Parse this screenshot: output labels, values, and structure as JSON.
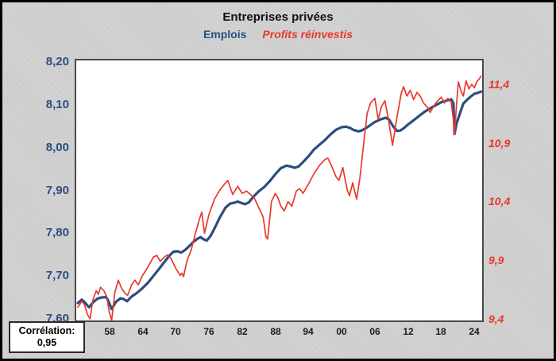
{
  "title": "Entreprises privées",
  "legend": {
    "emplois": "Emplois",
    "profits": "Profits réinvestis"
  },
  "correlation_box": {
    "label": "Corrélation:",
    "value": "0,95"
  },
  "colors": {
    "emplois_line": "#2d4d80",
    "profits_line": "#e8392c",
    "title_text": "#111111",
    "plot_bg": "#ffffff",
    "frame_bg": "#d7d7d7"
  },
  "chart_data": {
    "type": "line",
    "title": "Entreprises privées",
    "legend_position": "top-center",
    "grid": false,
    "x_domain": [
      1952.0,
      2025.4
    ],
    "left_ylim_bottom_top": [
      7.5963,
      8.2038
    ],
    "right_ylim_bottom_top": [
      9.3864,
      11.6034
    ],
    "left_ticks": [
      {
        "label": "8,20",
        "value": 8.2
      },
      {
        "label": "8,10",
        "value": 8.1
      },
      {
        "label": "8,00",
        "value": 8.0
      },
      {
        "label": "7,90",
        "value": 7.9
      },
      {
        "label": "7,80",
        "value": 7.8
      },
      {
        "label": "7,70",
        "value": 7.7
      },
      {
        "label": "7,60",
        "value": 7.6
      }
    ],
    "right_ticks": [
      {
        "label": "11,4",
        "value": 11.4
      },
      {
        "label": "10,9",
        "value": 10.9
      },
      {
        "label": "10,4",
        "value": 10.4
      },
      {
        "label": "9,9",
        "value": 9.9
      },
      {
        "label": "9,4",
        "value": 9.4
      }
    ],
    "x_ticks": [
      {
        "label": "58",
        "year": 1958
      },
      {
        "label": "64",
        "year": 1964
      },
      {
        "label": "70",
        "year": 1970
      },
      {
        "label": "76",
        "year": 1976
      },
      {
        "label": "82",
        "year": 1982
      },
      {
        "label": "88",
        "year": 1988
      },
      {
        "label": "94",
        "year": 1994
      },
      {
        "label": "00",
        "year": 2000
      },
      {
        "label": "06",
        "year": 2006
      },
      {
        "label": "12",
        "year": 2012
      },
      {
        "label": "18",
        "year": 2018
      },
      {
        "label": "24",
        "year": 2024
      }
    ],
    "series": [
      {
        "name": "Emplois",
        "axis": "left",
        "color": "#2d4d80",
        "stroke_width": 3.2,
        "points": [
          [
            1952.3,
            7.637
          ],
          [
            1953.0,
            7.645
          ],
          [
            1953.6,
            7.638
          ],
          [
            1954.3,
            7.627
          ],
          [
            1955.0,
            7.638
          ],
          [
            1955.8,
            7.647
          ],
          [
            1956.5,
            7.65
          ],
          [
            1957.4,
            7.651
          ],
          [
            1957.8,
            7.642
          ],
          [
            1958.4,
            7.623
          ],
          [
            1959.2,
            7.64
          ],
          [
            1960.0,
            7.648
          ],
          [
            1960.6,
            7.646
          ],
          [
            1961.2,
            7.641
          ],
          [
            1962.0,
            7.652
          ],
          [
            1963.0,
            7.661
          ],
          [
            1964.0,
            7.672
          ],
          [
            1965.0,
            7.685
          ],
          [
            1966.0,
            7.701
          ],
          [
            1967.0,
            7.717
          ],
          [
            1968.0,
            7.734
          ],
          [
            1969.0,
            7.75
          ],
          [
            1969.6,
            7.757
          ],
          [
            1970.3,
            7.758
          ],
          [
            1971.0,
            7.755
          ],
          [
            1971.8,
            7.762
          ],
          [
            1972.5,
            7.771
          ],
          [
            1973.2,
            7.78
          ],
          [
            1974.0,
            7.788
          ],
          [
            1974.5,
            7.791
          ],
          [
            1975.0,
            7.786
          ],
          [
            1975.6,
            7.783
          ],
          [
            1976.3,
            7.794
          ],
          [
            1977.0,
            7.811
          ],
          [
            1978.0,
            7.838
          ],
          [
            1979.0,
            7.86
          ],
          [
            1979.8,
            7.869
          ],
          [
            1980.5,
            7.871
          ],
          [
            1981.2,
            7.874
          ],
          [
            1981.8,
            7.871
          ],
          [
            1982.5,
            7.868
          ],
          [
            1983.2,
            7.872
          ],
          [
            1984.0,
            7.885
          ],
          [
            1985.0,
            7.898
          ],
          [
            1986.0,
            7.908
          ],
          [
            1987.0,
            7.922
          ],
          [
            1988.0,
            7.938
          ],
          [
            1989.0,
            7.952
          ],
          [
            1990.0,
            7.958
          ],
          [
            1990.8,
            7.956
          ],
          [
            1991.5,
            7.953
          ],
          [
            1992.2,
            7.956
          ],
          [
            1993.0,
            7.966
          ],
          [
            1994.0,
            7.98
          ],
          [
            1995.0,
            7.996
          ],
          [
            1996.0,
            8.007
          ],
          [
            1997.0,
            8.018
          ],
          [
            1998.0,
            8.031
          ],
          [
            1999.0,
            8.042
          ],
          [
            2000.0,
            8.048
          ],
          [
            2000.8,
            8.049
          ],
          [
            2001.5,
            8.046
          ],
          [
            2002.2,
            8.041
          ],
          [
            2003.0,
            8.038
          ],
          [
            2003.6,
            8.04
          ],
          [
            2004.3,
            8.045
          ],
          [
            2005.0,
            8.051
          ],
          [
            2006.0,
            8.06
          ],
          [
            2007.0,
            8.066
          ],
          [
            2008.0,
            8.07
          ],
          [
            2008.6,
            8.065
          ],
          [
            2009.3,
            8.05
          ],
          [
            2010.0,
            8.039
          ],
          [
            2010.6,
            8.04
          ],
          [
            2011.3,
            8.046
          ],
          [
            2012.0,
            8.054
          ],
          [
            2013.0,
            8.064
          ],
          [
            2014.0,
            8.074
          ],
          [
            2015.0,
            8.084
          ],
          [
            2016.0,
            8.092
          ],
          [
            2017.0,
            8.099
          ],
          [
            2018.0,
            8.106
          ],
          [
            2019.0,
            8.11
          ],
          [
            2019.8,
            8.113
          ],
          [
            2020.2,
            8.105
          ],
          [
            2020.4,
            8.032
          ],
          [
            2020.8,
            8.058
          ],
          [
            2021.3,
            8.077
          ],
          [
            2022.0,
            8.103
          ],
          [
            2022.7,
            8.112
          ],
          [
            2023.3,
            8.119
          ],
          [
            2024.0,
            8.126
          ],
          [
            2024.6,
            8.128
          ],
          [
            2025.2,
            8.131
          ]
        ]
      },
      {
        "name": "Profits réinvestis",
        "axis": "right",
        "color": "#e8392c",
        "stroke_width": 1.7,
        "points": [
          [
            1952.3,
            9.5
          ],
          [
            1953.0,
            9.55
          ],
          [
            1953.5,
            9.52
          ],
          [
            1954.0,
            9.44
          ],
          [
            1954.5,
            9.4
          ],
          [
            1955.0,
            9.56
          ],
          [
            1955.6,
            9.64
          ],
          [
            1956.0,
            9.61
          ],
          [
            1956.4,
            9.67
          ],
          [
            1957.0,
            9.64
          ],
          [
            1957.5,
            9.59
          ],
          [
            1958.0,
            9.45
          ],
          [
            1958.4,
            9.39
          ],
          [
            1959.0,
            9.63
          ],
          [
            1959.6,
            9.73
          ],
          [
            1960.2,
            9.66
          ],
          [
            1960.8,
            9.62
          ],
          [
            1961.3,
            9.6
          ],
          [
            1962.0,
            9.69
          ],
          [
            1962.6,
            9.73
          ],
          [
            1963.2,
            9.69
          ],
          [
            1964.0,
            9.77
          ],
          [
            1964.7,
            9.82
          ],
          [
            1965.4,
            9.88
          ],
          [
            1966.0,
            9.93
          ],
          [
            1966.6,
            9.94
          ],
          [
            1967.2,
            9.89
          ],
          [
            1968.0,
            9.93
          ],
          [
            1968.5,
            9.945
          ],
          [
            1969.2,
            9.91
          ],
          [
            1970.0,
            9.83
          ],
          [
            1970.8,
            9.77
          ],
          [
            1971.1,
            9.79
          ],
          [
            1971.4,
            9.76
          ],
          [
            1972.0,
            9.89
          ],
          [
            1972.8,
            9.99
          ],
          [
            1973.5,
            10.12
          ],
          [
            1974.2,
            10.24
          ],
          [
            1974.7,
            10.31
          ],
          [
            1975.2,
            10.13
          ],
          [
            1976.0,
            10.29
          ],
          [
            1977.0,
            10.42
          ],
          [
            1978.0,
            10.5
          ],
          [
            1979.0,
            10.56
          ],
          [
            1979.4,
            10.58
          ],
          [
            1980.3,
            10.46
          ],
          [
            1981.2,
            10.53
          ],
          [
            1982.0,
            10.47
          ],
          [
            1982.8,
            10.49
          ],
          [
            1983.5,
            10.46
          ],
          [
            1984.2,
            10.43
          ],
          [
            1985.0,
            10.35
          ],
          [
            1985.8,
            10.27
          ],
          [
            1986.3,
            10.1
          ],
          [
            1986.6,
            10.08
          ],
          [
            1987.3,
            10.4
          ],
          [
            1988.0,
            10.47
          ],
          [
            1988.5,
            10.43
          ],
          [
            1989.0,
            10.36
          ],
          [
            1989.6,
            10.32
          ],
          [
            1990.3,
            10.4
          ],
          [
            1991.0,
            10.36
          ],
          [
            1991.8,
            10.49
          ],
          [
            1992.4,
            10.51
          ],
          [
            1993.0,
            10.47
          ],
          [
            1994.0,
            10.55
          ],
          [
            1995.0,
            10.64
          ],
          [
            1996.0,
            10.71
          ],
          [
            1997.0,
            10.76
          ],
          [
            1997.5,
            10.77
          ],
          [
            1998.2,
            10.7
          ],
          [
            1999.0,
            10.61
          ],
          [
            1999.5,
            10.58
          ],
          [
            2000.2,
            10.69
          ],
          [
            2001.0,
            10.5
          ],
          [
            2001.4,
            10.45
          ],
          [
            2002.0,
            10.56
          ],
          [
            2002.7,
            10.42
          ],
          [
            2003.3,
            10.6
          ],
          [
            2004.0,
            10.9
          ],
          [
            2004.6,
            11.15
          ],
          [
            2005.2,
            11.24
          ],
          [
            2006.0,
            11.28
          ],
          [
            2006.6,
            11.1
          ],
          [
            2007.2,
            11.21
          ],
          [
            2007.8,
            11.26
          ],
          [
            2008.4,
            11.12
          ],
          [
            2009.2,
            10.88
          ],
          [
            2010.0,
            11.12
          ],
          [
            2010.8,
            11.33
          ],
          [
            2011.2,
            11.38
          ],
          [
            2011.8,
            11.3
          ],
          [
            2012.4,
            11.35
          ],
          [
            2013.0,
            11.27
          ],
          [
            2013.6,
            11.33
          ],
          [
            2014.2,
            11.3
          ],
          [
            2014.8,
            11.24
          ],
          [
            2015.4,
            11.21
          ],
          [
            2016.0,
            11.16
          ],
          [
            2016.6,
            11.21
          ],
          [
            2017.2,
            11.25
          ],
          [
            2018.0,
            11.29
          ],
          [
            2018.6,
            11.24
          ],
          [
            2019.2,
            11.28
          ],
          [
            2019.8,
            11.25
          ],
          [
            2020.2,
            11.1
          ],
          [
            2020.4,
            10.97
          ],
          [
            2020.8,
            11.25
          ],
          [
            2021.1,
            11.42
          ],
          [
            2021.6,
            11.34
          ],
          [
            2022.0,
            11.3
          ],
          [
            2022.5,
            11.43
          ],
          [
            2023.0,
            11.36
          ],
          [
            2023.5,
            11.4
          ],
          [
            2024.0,
            11.37
          ],
          [
            2024.4,
            11.42
          ],
          [
            2024.8,
            11.44
          ],
          [
            2025.2,
            11.47
          ]
        ]
      }
    ]
  }
}
